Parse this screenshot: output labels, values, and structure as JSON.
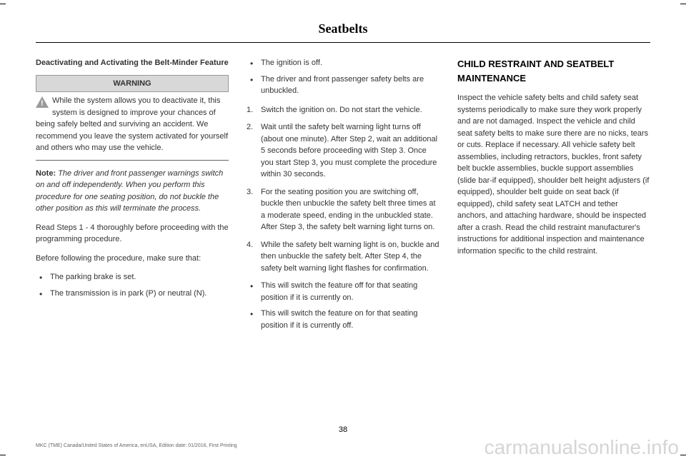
{
  "header": {
    "title": "Seatbelts"
  },
  "col1": {
    "subheading": "Deactivating and Activating the Belt-Minder Feature",
    "warning_label": "WARNING",
    "warning_text": "While the system allows you to deactivate it, this system is designed to improve your chances of being safely belted and surviving an accident. We recommend you leave the system activated for yourself and others who may use the vehicle.",
    "note_label": "Note:",
    "note_text": " The driver and front passenger warnings switch on and off independently. When you perform this procedure for one seating position, do not buckle the other position as this will terminate the process.",
    "para1": "Read Steps 1 - 4 thoroughly before proceeding with the programming procedure.",
    "para2": "Before following the procedure, make sure that:",
    "bullets": [
      "The parking brake is set.",
      "The transmission is in park (P) or neutral (N)."
    ]
  },
  "col2": {
    "top_bullets": [
      "The ignition is off.",
      "The driver and front passenger safety belts are unbuckled."
    ],
    "steps": [
      "Switch the ignition on. Do not start the vehicle.",
      "Wait until the safety belt warning light turns off (about one minute). After Step 2, wait an additional 5 seconds before proceeding with Step 3. Once you start Step 3, you must complete the procedure within 30 seconds.",
      "For the seating position you are switching off, buckle then unbuckle the safety belt three times at a moderate speed, ending in the unbuckled state. After Step 3, the safety belt warning light turns on.",
      "While the safety belt warning light is on, buckle and then unbuckle the safety belt. After Step 4, the safety belt warning light flashes for confirmation."
    ],
    "end_bullets": [
      "This will switch the feature off for that seating position if it is currently on.",
      "This will switch the feature on for that seating position if it is currently off."
    ]
  },
  "col3": {
    "section_title": "CHILD RESTRAINT AND SEATBELT MAINTENANCE",
    "para": "Inspect the vehicle safety belts and child safety seat systems periodically to make sure they work properly and are not damaged. Inspect the vehicle and child seat safety belts to make sure there are no nicks, tears or cuts. Replace if necessary. All vehicle safety belt assemblies, including retractors, buckles, front safety belt buckle assemblies, buckle support assemblies (slide bar-if equipped), shoulder belt height adjusters (if equipped), shoulder belt guide on seat back (if equipped), child safety seat LATCH and tether anchors, and attaching hardware, should be inspected after a crash. Read the child restraint manufacturer's instructions for additional inspection and maintenance information specific to the child restraint."
  },
  "page_number": "38",
  "footer": "MKC (TME) Canada/United States of America, enUSA, Edition date: 01/2016, First Printing",
  "watermark": "carmanualsonline.info"
}
